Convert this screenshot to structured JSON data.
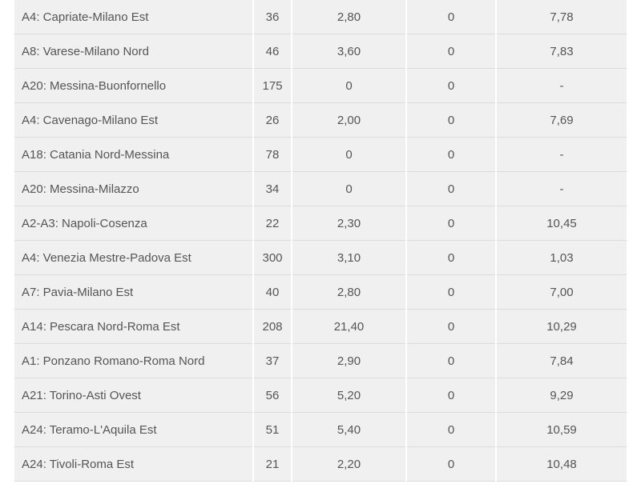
{
  "rows": [
    {
      "route": "A4: Capriate-Milano Est",
      "km": "36",
      "toll": "2,80",
      "col4": "0",
      "rate": "7,78"
    },
    {
      "route": "A8: Varese-Milano Nord",
      "km": "46",
      "toll": "3,60",
      "col4": "0",
      "rate": "7,83"
    },
    {
      "route": "A20: Messina-Buonfornello",
      "km": "175",
      "toll": "0",
      "col4": "0",
      "rate": "-"
    },
    {
      "route": "A4: Cavenago-Milano Est",
      "km": "26",
      "toll": "2,00",
      "col4": "0",
      "rate": "7,69"
    },
    {
      "route": "A18: Catania Nord-Messina",
      "km": "78",
      "toll": "0",
      "col4": "0",
      "rate": "-"
    },
    {
      "route": "A20: Messina-Milazzo",
      "km": "34",
      "toll": "0",
      "col4": "0",
      "rate": "-"
    },
    {
      "route": "A2-A3: Napoli-Cosenza",
      "km": "22",
      "toll": "2,30",
      "col4": "0",
      "rate": "10,45"
    },
    {
      "route": "A4: Venezia Mestre-Padova Est",
      "km": "300",
      "toll": "3,10",
      "col4": "0",
      "rate": "1,03"
    },
    {
      "route": "A7: Pavia-Milano Est",
      "km": "40",
      "toll": "2,80",
      "col4": "0",
      "rate": "7,00"
    },
    {
      "route": "A14: Pescara Nord-Roma Est",
      "km": "208",
      "toll": "21,40",
      "col4": "0",
      "rate": "10,29"
    },
    {
      "route": "A1: Ponzano Romano-Roma Nord",
      "km": "37",
      "toll": "2,90",
      "col4": "0",
      "rate": "7,84"
    },
    {
      "route": "A21: Torino-Asti Ovest",
      "km": "56",
      "toll": "5,20",
      "col4": "0",
      "rate": "9,29"
    },
    {
      "route": "A24: Teramo-L'Aquila Est",
      "km": "51",
      "toll": "5,40",
      "col4": "0",
      "rate": "10,59"
    },
    {
      "route": "A24: Tivoli-Roma Est",
      "km": "21",
      "toll": "2,20",
      "col4": "0",
      "rate": "10,48"
    }
  ]
}
